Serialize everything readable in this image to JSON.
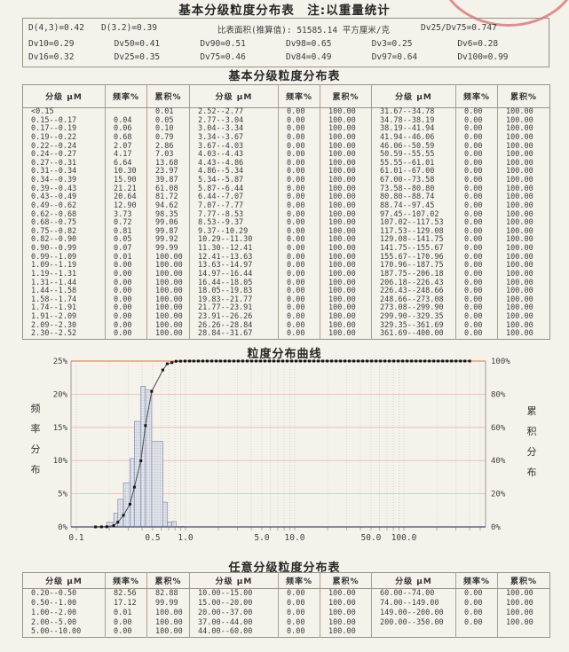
{
  "page": {
    "title": "基本分级粒度分布表　注:以重量统计",
    "stamp_color": "#d05454"
  },
  "summary_box": {
    "row1": [
      "D(4,3)=0.42",
      "D(3.2)=0.39",
      "比表面积(推算值): 51585.14 平方厘米/克",
      "Dv25/Dv75=0.747"
    ],
    "row2": [
      "Dv10=0.29",
      "Dv50=0.41",
      "Dv90=0.51",
      "Dv98=0.65",
      "Dv3=0.25",
      "Dv6=0.28"
    ],
    "row3": [
      "Dv16=0.32",
      "Dv25=0.35",
      "Dv75=0.46",
      "Dv84=0.49",
      "Dv97=0.64",
      "Dv100=0.99"
    ]
  },
  "basic_table": {
    "title": "基本分级粒度分布表",
    "headers": [
      "分级 μM",
      "频率%",
      "累积%",
      "分级 μM",
      "频率%",
      "累积%",
      "分级 μM",
      "频率%",
      "累积%"
    ],
    "rows": [
      [
        "<0.15",
        "",
        "0.01",
        "2.52--2.77",
        "0.00",
        "100.00",
        "31.67--34.78",
        "0.00",
        "100.00"
      ],
      [
        "0.15--0.17",
        "0.04",
        "0.05",
        "2.77--3.04",
        "0.00",
        "100.00",
        "34.78--38.19",
        "0.00",
        "100.00"
      ],
      [
        "0.17--0.19",
        "0.06",
        "0.10",
        "3.04--3.34",
        "0.00",
        "100.00",
        "38.19--41.94",
        "0.00",
        "100.00"
      ],
      [
        "0.19--0.22",
        "0.68",
        "0.79",
        "3.34--3.67",
        "0.00",
        "100.00",
        "41.94--46.06",
        "0.00",
        "100.00"
      ],
      [
        "0.22--0.24",
        "2.07",
        "2.86",
        "3.67--4.03",
        "0.00",
        "100.00",
        "46.06--50.59",
        "0.00",
        "100.00"
      ],
      [
        "0.24--0.27",
        "4.17",
        "7.03",
        "4.03--4.43",
        "0.00",
        "100.00",
        "50.59--55.55",
        "0.00",
        "100.00"
      ],
      [
        "0.27--0.31",
        "6.64",
        "13.68",
        "4.43--4.86",
        "0.00",
        "100.00",
        "55.55--61.01",
        "0.00",
        "100.00"
      ],
      [
        "0.31--0.34",
        "10.30",
        "23.97",
        "4.86--5.34",
        "0.00",
        "100.00",
        "61.01--67.00",
        "0.00",
        "100.00"
      ],
      [
        "0.34--0.39",
        "15.90",
        "39.87",
        "5.34--5.87",
        "0.00",
        "100.00",
        "67.00--73.58",
        "0.00",
        "100.00"
      ],
      [
        "0.39--0.43",
        "21.21",
        "61.08",
        "5.87--6.44",
        "0.00",
        "100.00",
        "73.58--80.80",
        "0.00",
        "100.00"
      ],
      [
        "0.43--0.49",
        "20.64",
        "81.72",
        "6.44--7.07",
        "0.00",
        "100.00",
        "80.80--88.74",
        "0.00",
        "100.00"
      ],
      [
        "0.49--0.62",
        "12.90",
        "94.62",
        "7.07--7.77",
        "0.00",
        "100.00",
        "88.74--97.45",
        "0.00",
        "100.00"
      ],
      [
        "0.62--0.68",
        "3.73",
        "98.35",
        "7.77--8.53",
        "0.00",
        "100.00",
        "97.45--107.02",
        "0.00",
        "100.00"
      ],
      [
        "0.68--0.75",
        "0.72",
        "99.06",
        "8.53--9.37",
        "0.00",
        "100.00",
        "107.02--117.53",
        "0.00",
        "100.00"
      ],
      [
        "0.75--0.82",
        "0.81",
        "99.87",
        "9.37--10.29",
        "0.00",
        "100.00",
        "117.53--129.08",
        "0.00",
        "100.00"
      ],
      [
        "0.82--0.90",
        "0.05",
        "99.92",
        "10.29--11.30",
        "0.00",
        "100.00",
        "129.08--141.75",
        "0.00",
        "100.00"
      ],
      [
        "0.90--0.99",
        "0.07",
        "99.99",
        "11.30--12.41",
        "0.00",
        "100.00",
        "141.75--155.67",
        "0.00",
        "100.00"
      ],
      [
        "0.99--1.09",
        "0.01",
        "100.00",
        "12.41--13.63",
        "0.00",
        "100.00",
        "155.67--170.96",
        "0.00",
        "100.00"
      ],
      [
        "1.09--1.19",
        "0.00",
        "100.00",
        "13.63--14.97",
        "0.00",
        "100.00",
        "170.96--187.75",
        "0.00",
        "100.00"
      ],
      [
        "1.19--1.31",
        "0.00",
        "100.00",
        "14.97--16.44",
        "0.00",
        "100.00",
        "187.75--206.18",
        "0.00",
        "100.00"
      ],
      [
        "1.31--1.44",
        "0.00",
        "100.00",
        "16.44--18.05",
        "0.00",
        "100.00",
        "206.18--226.43",
        "0.00",
        "100.00"
      ],
      [
        "1.44--1.58",
        "0.00",
        "100.00",
        "18.05--19.83",
        "0.00",
        "100.00",
        "226.43--248.66",
        "0.00",
        "100.00"
      ],
      [
        "1.58--1.74",
        "0.00",
        "100.00",
        "19.83--21.77",
        "0.00",
        "100.00",
        "248.66--273.08",
        "0.00",
        "100.00"
      ],
      [
        "1.74--1.91",
        "0.00",
        "100.00",
        "21.77--23.91",
        "0.00",
        "100.00",
        "273.08--299.90",
        "0.00",
        "100.00"
      ],
      [
        "1.91--2.09",
        "0.00",
        "100.00",
        "23.91--26.26",
        "0.00",
        "100.00",
        "299.90--329.35",
        "0.00",
        "100.00"
      ],
      [
        "2.09--2.30",
        "0.00",
        "100.00",
        "26.26--28.84",
        "0.00",
        "100.00",
        "329.35--361.69",
        "0.00",
        "100.00"
      ],
      [
        "2.30--2.52",
        "0.00",
        "100.00",
        "28.84--31.67",
        "0.00",
        "100.00",
        "361.69--400.00",
        "0.00",
        "100.00"
      ]
    ]
  },
  "chart_data": {
    "type": "histogram_with_cumulative_line",
    "title": "粒度分布曲线",
    "x_axis": {
      "scale": "log",
      "unit": "μM",
      "tick_labels": [
        "0.1",
        "0.5",
        "1.0",
        "5.0",
        "10.0",
        "50.0",
        "100.0"
      ],
      "tick_values": [
        0.1,
        0.5,
        1.0,
        5.0,
        10.0,
        50.0,
        100.0
      ],
      "range_approx": [
        0.067,
        550
      ]
    },
    "y_left": {
      "label": "频率分布",
      "ticks": [
        "0%",
        "5%",
        "10%",
        "15%",
        "20%",
        "25%"
      ],
      "max": 25
    },
    "y_right": {
      "label": "累积分布",
      "ticks": [
        "0%",
        "20%",
        "40%",
        "60%",
        "80%",
        "100%"
      ],
      "max": 100
    },
    "bars": [
      {
        "from": 0.15,
        "to": 0.17,
        "freq": 0.04
      },
      {
        "from": 0.17,
        "to": 0.19,
        "freq": 0.06
      },
      {
        "from": 0.19,
        "to": 0.22,
        "freq": 0.68
      },
      {
        "from": 0.22,
        "to": 0.24,
        "freq": 2.07
      },
      {
        "from": 0.24,
        "to": 0.27,
        "freq": 4.17
      },
      {
        "from": 0.27,
        "to": 0.31,
        "freq": 6.64
      },
      {
        "from": 0.31,
        "to": 0.34,
        "freq": 10.3
      },
      {
        "from": 0.34,
        "to": 0.39,
        "freq": 15.9
      },
      {
        "from": 0.39,
        "to": 0.43,
        "freq": 21.21
      },
      {
        "from": 0.43,
        "to": 0.49,
        "freq": 20.64
      },
      {
        "from": 0.49,
        "to": 0.62,
        "freq": 12.9
      },
      {
        "from": 0.62,
        "to": 0.68,
        "freq": 3.73
      },
      {
        "from": 0.68,
        "to": 0.75,
        "freq": 0.72
      },
      {
        "from": 0.75,
        "to": 0.82,
        "freq": 0.81
      },
      {
        "from": 0.82,
        "to": 0.9,
        "freq": 0.05
      },
      {
        "from": 0.9,
        "to": 0.99,
        "freq": 0.07
      },
      {
        "from": 0.99,
        "to": 1.09,
        "freq": 0.01
      }
    ],
    "cumulative": [
      [
        0.15,
        0.01
      ],
      [
        0.17,
        0.05
      ],
      [
        0.19,
        0.1
      ],
      [
        0.22,
        0.79
      ],
      [
        0.24,
        2.86
      ],
      [
        0.27,
        7.03
      ],
      [
        0.31,
        13.68
      ],
      [
        0.34,
        23.97
      ],
      [
        0.39,
        39.87
      ],
      [
        0.43,
        61.08
      ],
      [
        0.49,
        81.72
      ],
      [
        0.62,
        94.62
      ],
      [
        0.68,
        98.35
      ],
      [
        0.75,
        99.06
      ],
      [
        0.82,
        99.87
      ],
      [
        0.9,
        99.92
      ],
      [
        0.99,
        99.99
      ],
      [
        1.09,
        100.0
      ]
    ],
    "cumulative_plateau_note": "cumulative stays at 100% with a marker at every bin upper edge from 1.19 up to 400 (edges taken from basic_table rows)",
    "grid": {
      "horizontal_every_pct": 5,
      "vertical": "log decades and subdivisions"
    },
    "colors": {
      "grid_h": "#ecb4b6",
      "grid_v": "#c6c2c9",
      "bar_fill": "#e2e5ec",
      "bar_hatch": "#a9b0c3",
      "bar_border": "#848da3",
      "line": "#4a4a4a",
      "marker": "#141414",
      "top_border": "#e0906a",
      "axis": "#62648a",
      "side_border": "#9a9a9a"
    }
  },
  "arbitrary_table": {
    "title": "任意分级粒度分布表",
    "headers": [
      "分级 μM",
      "频率%",
      "累积%",
      "分级 μM",
      "频率%",
      "累积%",
      "分级 μM",
      "频率%",
      "累积%"
    ],
    "rows": [
      [
        "0.20--0.50",
        "82.56",
        "82.88",
        "10.00--15.00",
        "0.00",
        "100.00",
        "60.00--74.00",
        "0.00",
        "100.00"
      ],
      [
        "0.50--1.00",
        "17.12",
        "99.99",
        "15.00--20.00",
        "0.00",
        "100.00",
        "74.00--149.00",
        "0.00",
        "100.00"
      ],
      [
        "1.00--2.00",
        "0.01",
        "100.00",
        "20.00--37.00",
        "0.00",
        "100.00",
        "149.00--200.00",
        "0.00",
        "100.00"
      ],
      [
        "2.00--5.00",
        "0.00",
        "100.00",
        "37.00--44.00",
        "0.00",
        "100.00",
        "200.00--350.00",
        "0.00",
        "100.00"
      ],
      [
        "5.00--10.00",
        "0.00",
        "100.00",
        "44.00--60.00",
        "0.00",
        "100.00",
        "",
        "",
        ""
      ]
    ]
  }
}
